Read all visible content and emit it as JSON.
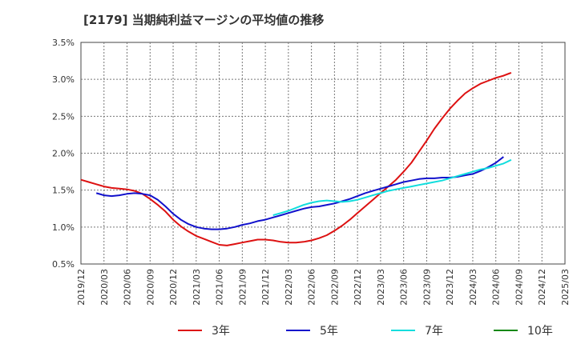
{
  "chart_data": {
    "type": "line",
    "title": "[2179]  当期純利益マージンの平均値の推移",
    "xlabel": "",
    "ylabel": "",
    "ylim": [
      0.5,
      3.5
    ],
    "y_ticks": [
      0.5,
      1.0,
      1.5,
      2.0,
      2.5,
      3.0,
      3.5
    ],
    "y_tick_labels": [
      "0.5%",
      "1.0%",
      "1.5%",
      "2.0%",
      "2.5%",
      "3.0%",
      "3.5%"
    ],
    "x_ticks": [
      "2019/12",
      "2020/03",
      "2020/06",
      "2020/09",
      "2020/12",
      "2021/03",
      "2021/06",
      "2021/09",
      "2021/12",
      "2022/03",
      "2022/06",
      "2022/09",
      "2022/12",
      "2023/03",
      "2023/06",
      "2023/09",
      "2023/12",
      "2024/03",
      "2024/06",
      "2024/09",
      "2024/12",
      "2025/03"
    ],
    "grid": true,
    "legend_position": "bottom",
    "series": [
      {
        "name": "3年",
        "color": "#dd1111",
        "start_index": 0,
        "values": [
          1.64,
          1.61,
          1.58,
          1.55,
          1.53,
          1.52,
          1.51,
          1.49,
          1.45,
          1.38,
          1.3,
          1.21,
          1.1,
          1.01,
          0.94,
          0.88,
          0.84,
          0.8,
          0.76,
          0.75,
          0.77,
          0.79,
          0.81,
          0.83,
          0.83,
          0.82,
          0.8,
          0.79,
          0.79,
          0.8,
          0.82,
          0.85,
          0.89,
          0.95,
          1.02,
          1.1,
          1.19,
          1.28,
          1.37,
          1.46,
          1.55,
          1.64,
          1.75,
          1.87,
          2.02,
          2.17,
          2.33,
          2.47,
          2.6,
          2.71,
          2.81,
          2.88,
          2.94,
          2.98,
          3.02,
          3.05,
          3.09
        ]
      },
      {
        "name": "5年",
        "color": "#1111cc",
        "start_index": 2,
        "values": [
          1.46,
          1.43,
          1.42,
          1.43,
          1.45,
          1.46,
          1.45,
          1.43,
          1.37,
          1.28,
          1.18,
          1.1,
          1.04,
          1.0,
          0.98,
          0.97,
          0.97,
          0.98,
          1.0,
          1.03,
          1.05,
          1.08,
          1.1,
          1.13,
          1.16,
          1.19,
          1.22,
          1.25,
          1.27,
          1.28,
          1.3,
          1.32,
          1.35,
          1.38,
          1.42,
          1.46,
          1.49,
          1.52,
          1.55,
          1.58,
          1.61,
          1.63,
          1.65,
          1.66,
          1.66,
          1.67,
          1.67,
          1.68,
          1.7,
          1.72,
          1.76,
          1.81,
          1.87,
          1.95
        ]
      },
      {
        "name": "7年",
        "color": "#11dddd",
        "start_index": 25,
        "values": [
          1.16,
          1.19,
          1.22,
          1.26,
          1.3,
          1.33,
          1.35,
          1.36,
          1.35,
          1.34,
          1.35,
          1.37,
          1.4,
          1.43,
          1.46,
          1.49,
          1.51,
          1.53,
          1.55,
          1.57,
          1.59,
          1.61,
          1.63,
          1.66,
          1.69,
          1.72,
          1.75,
          1.78,
          1.8,
          1.83,
          1.86,
          1.91
        ]
      },
      {
        "name": "10年",
        "color": "#118811",
        "start_index": 0,
        "values": []
      }
    ]
  }
}
